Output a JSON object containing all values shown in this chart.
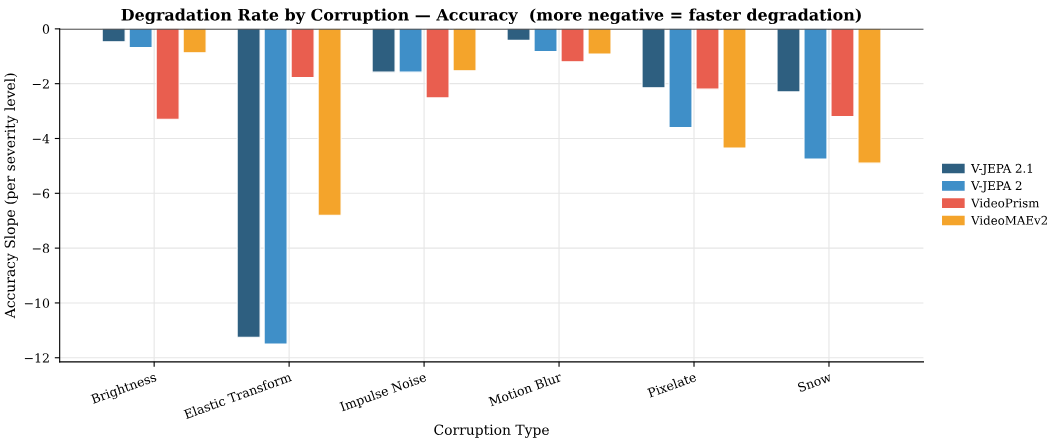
{
  "chart_data": {
    "type": "bar",
    "title": "Degradation Rate by Corruption — Accuracy  (more negative = faster degradation)",
    "xlabel": "Corruption Type",
    "ylabel": "Accuracy Slope (per severity level)",
    "categories": [
      "Brightness",
      "Elastic Transform",
      "Impulse Noise",
      "Motion Blur",
      "Pixelate",
      "Snow"
    ],
    "series": [
      {
        "name": "V-JEPA 2.1",
        "color": "#2e5f80",
        "values": [
          -0.47,
          -11.25,
          -1.58,
          -0.42,
          -2.15,
          -2.3
        ]
      },
      {
        "name": "V-JEPA 2",
        "color": "#3f8fc8",
        "values": [
          -0.68,
          -11.5,
          -1.58,
          -0.83,
          -3.6,
          -4.75
        ]
      },
      {
        "name": "VideoPrism",
        "color": "#e95e4f",
        "values": [
          -3.3,
          -1.78,
          -2.52,
          -1.2,
          -2.2,
          -3.2
        ]
      },
      {
        "name": "VideoMAEv2",
        "color": "#f4a42b",
        "values": [
          -0.87,
          -6.8,
          -1.53,
          -0.92,
          -4.35,
          -4.9
        ]
      }
    ],
    "ylim": [
      -12.15,
      0
    ],
    "yticks": [
      {
        "value": -12,
        "label": "−12"
      },
      {
        "value": -10,
        "label": "−10"
      },
      {
        "value": -8,
        "label": "−8"
      },
      {
        "value": -6,
        "label": "−6"
      },
      {
        "value": -4,
        "label": "−4"
      },
      {
        "value": -2,
        "label": "−2"
      },
      0
    ],
    "ref_lines": [
      {
        "axis": "y",
        "value": 0,
        "color": "#000000"
      }
    ],
    "grid": true,
    "legend": "right"
  }
}
